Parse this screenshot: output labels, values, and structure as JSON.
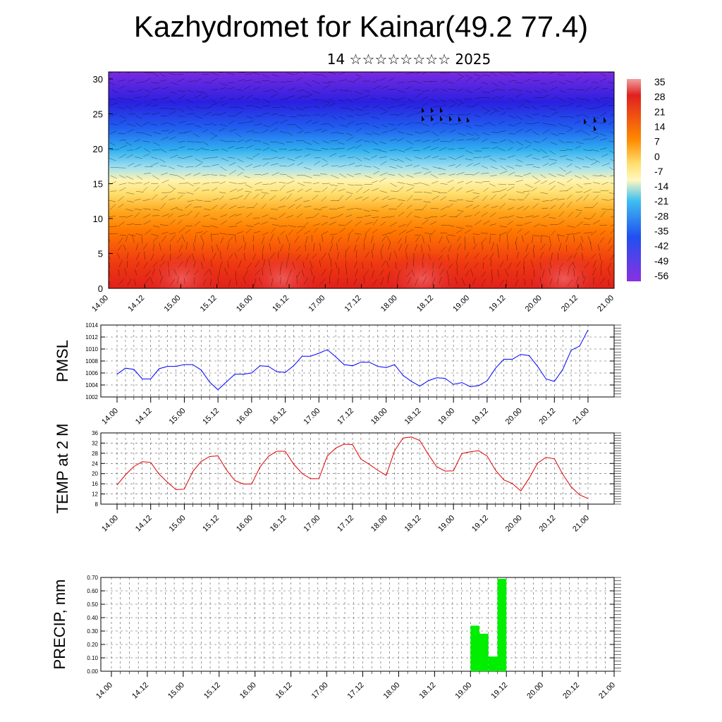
{
  "title": "Kazhydromet for Kainar(49.2 77.4)",
  "subtitle": "14 ☆☆☆☆☆☆☆☆ 2025",
  "chart_data": [
    {
      "type": "heatmap",
      "name": "cross-section",
      "y_ticks": [
        "0",
        "5",
        "10",
        "15",
        "20",
        "25",
        "30"
      ],
      "y_range": [
        0,
        31
      ],
      "x_ticks": [
        "14.00",
        "14.12",
        "15.00",
        "15.12",
        "16.00",
        "16.12",
        "17.00",
        "17.12",
        "18.00",
        "18.12",
        "19.00",
        "19.12",
        "20.00",
        "20.12",
        "21.00"
      ],
      "colorbar_labels": [
        "35",
        "28",
        "21",
        "14",
        "7",
        "0",
        "-7",
        "-14",
        "-21",
        "-28",
        "-35",
        "-42",
        "-49",
        "-56"
      ],
      "colors": {
        "hot": "#cc1010",
        "warm": "#ff8000",
        "yellow": "#ffee80",
        "cyan": "#40c0f0",
        "blue": "#2040e0",
        "violet": "#8030e0"
      },
      "grid": true
    },
    {
      "type": "line",
      "ylabel": "PMSL",
      "ylim": [
        1002,
        1014
      ],
      "y_ticks": [
        "1002",
        "1004",
        "1006",
        "1008",
        "1010",
        "1012",
        "1014"
      ],
      "x_ticks": [
        "14.00",
        "14.12",
        "15.00",
        "15.12",
        "16.00",
        "16.12",
        "17.00",
        "17.12",
        "18.00",
        "18.12",
        "19.00",
        "19.12",
        "20.00",
        "20.12",
        "21.00"
      ],
      "color": "#0000ff",
      "grid": true,
      "values": [
        1005.8,
        1006.8,
        1006.6,
        1005.0,
        1005.0,
        1006.7,
        1007.1,
        1007.1,
        1007.4,
        1007.4,
        1006.5,
        1004.5,
        1003.2,
        1004.5,
        1005.8,
        1005.8,
        1006.0,
        1007.2,
        1007.1,
        1006.2,
        1006.1,
        1007.2,
        1008.8,
        1008.8,
        1009.3,
        1009.9,
        1008.7,
        1007.4,
        1007.2,
        1007.8,
        1007.8,
        1007.1,
        1006.9,
        1007.4,
        1005.6,
        1004.6,
        1003.8,
        1004.7,
        1005.2,
        1005.1,
        1004.1,
        1004.4,
        1003.7,
        1003.9,
        1004.7,
        1006.8,
        1008.3,
        1008.3,
        1009.1,
        1008.9,
        1007.1,
        1005.0,
        1004.6,
        1006.6,
        1009.8,
        1010.5,
        1013.2
      ]
    },
    {
      "type": "line",
      "ylabel": "TEMP at 2 M",
      "ylim": [
        8,
        36
      ],
      "y_ticks": [
        "8",
        "12",
        "16",
        "20",
        "24",
        "28",
        "32",
        "36"
      ],
      "x_ticks": [
        "14.00",
        "14.12",
        "15.00",
        "15.12",
        "16.00",
        "16.12",
        "17.00",
        "17.12",
        "18.00",
        "18.12",
        "19.00",
        "19.12",
        "20.00",
        "20.12",
        "21.00"
      ],
      "color": "#e00000",
      "grid": true,
      "values": [
        15.5,
        19.5,
        22.8,
        24.7,
        24.4,
        19.8,
        16.6,
        13.7,
        13.9,
        20.8,
        24.8,
        26.7,
        27.0,
        21.5,
        17.3,
        15.9,
        15.9,
        22.6,
        26.8,
        28.8,
        28.8,
        23.7,
        20.1,
        18.0,
        18.0,
        26.9,
        30.0,
        31.6,
        31.4,
        25.7,
        23.6,
        21.3,
        19.3,
        29.0,
        34.0,
        34.4,
        33.0,
        27.6,
        22.7,
        21.0,
        21.1,
        27.9,
        28.6,
        29.0,
        26.9,
        21.3,
        17.5,
        16.1,
        13.2,
        18.2,
        24.1,
        26.4,
        25.8,
        19.7,
        14.8,
        11.6,
        10.2
      ]
    },
    {
      "type": "bar",
      "ylabel": "PRECIP, mm",
      "ylim": [
        0,
        0.7
      ],
      "y_ticks": [
        "0.00",
        "0.10",
        "0.20",
        "0.30",
        "0.40",
        "0.50",
        "0.60",
        "0.70"
      ],
      "x_ticks": [
        "14.00",
        "14.12",
        "15.00",
        "15.12",
        "16.00",
        "16.12",
        "17.00",
        "17.12",
        "18.00",
        "18.12",
        "19.00",
        "19.12",
        "20.00",
        "20.12",
        "21.00"
      ],
      "color": "#00ee00",
      "grid": true,
      "bars": [
        {
          "x": "19.00",
          "value": 0.34
        },
        {
          "x": "19.03",
          "value": 0.28
        },
        {
          "x": "19.06",
          "value": 0.11
        },
        {
          "x": "19.09",
          "value": 0.69
        }
      ]
    }
  ]
}
